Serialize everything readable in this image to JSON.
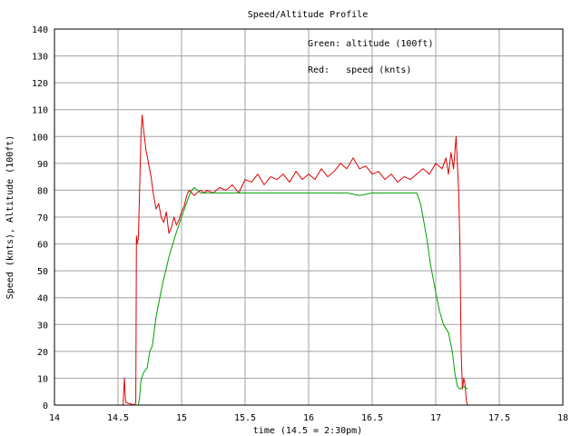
{
  "chart_data": {
    "type": "line",
    "title": "Speed/Altitude Profile",
    "xlabel": "time (14.5 = 2:30pm)",
    "ylabel": "Speed (knts), Altitude (100ft)",
    "xlim": [
      14,
      18
    ],
    "ylim": [
      0,
      140
    ],
    "grid": true,
    "x_ticks": [
      "14",
      "14.5",
      "15",
      "15.5",
      "16",
      "16.5",
      "17",
      "17.5",
      "18"
    ],
    "y_ticks": [
      "0",
      "10",
      "20",
      "30",
      "40",
      "50",
      "60",
      "70",
      "80",
      "90",
      "100",
      "110",
      "120",
      "130",
      "140"
    ],
    "legend": [
      {
        "text": "Green: altitude (100ft)",
        "color": "#00a000"
      },
      {
        "text": "Red:   speed (knts)",
        "color": "#e00000"
      }
    ],
    "legend_placement": "top-right",
    "series": [
      {
        "color": "#e00000",
        "points": [
          [
            14.54,
            0
          ],
          [
            14.55,
            10
          ],
          [
            14.56,
            1
          ],
          [
            14.63,
            0
          ],
          [
            14.64,
            1
          ],
          [
            14.645,
            63
          ],
          [
            14.65,
            60
          ],
          [
            14.66,
            62
          ],
          [
            14.67,
            80
          ],
          [
            14.68,
            100
          ],
          [
            14.69,
            108
          ],
          [
            14.7,
            103
          ],
          [
            14.72,
            95
          ],
          [
            14.74,
            90
          ],
          [
            14.76,
            85
          ],
          [
            14.78,
            78
          ],
          [
            14.8,
            73
          ],
          [
            14.82,
            75
          ],
          [
            14.84,
            70
          ],
          [
            14.86,
            68
          ],
          [
            14.88,
            72
          ],
          [
            14.9,
            64
          ],
          [
            14.92,
            66
          ],
          [
            14.94,
            70
          ],
          [
            14.96,
            67
          ],
          [
            14.98,
            69
          ],
          [
            15.0,
            72
          ],
          [
            15.02,
            74
          ],
          [
            15.04,
            78
          ],
          [
            15.06,
            80
          ],
          [
            15.08,
            79
          ],
          [
            15.1,
            78
          ],
          [
            15.12,
            79
          ],
          [
            15.15,
            80
          ],
          [
            15.18,
            79
          ],
          [
            15.2,
            80
          ],
          [
            15.25,
            79
          ],
          [
            15.3,
            81
          ],
          [
            15.35,
            80
          ],
          [
            15.4,
            82
          ],
          [
            15.45,
            79
          ],
          [
            15.5,
            84
          ],
          [
            15.55,
            83
          ],
          [
            15.6,
            86
          ],
          [
            15.65,
            82
          ],
          [
            15.7,
            85
          ],
          [
            15.75,
            84
          ],
          [
            15.8,
            86
          ],
          [
            15.85,
            83
          ],
          [
            15.9,
            87
          ],
          [
            15.95,
            84
          ],
          [
            16.0,
            86
          ],
          [
            16.05,
            84
          ],
          [
            16.1,
            88
          ],
          [
            16.15,
            85
          ],
          [
            16.2,
            87
          ],
          [
            16.25,
            90
          ],
          [
            16.3,
            88
          ],
          [
            16.35,
            92
          ],
          [
            16.4,
            88
          ],
          [
            16.45,
            89
          ],
          [
            16.5,
            86
          ],
          [
            16.55,
            87
          ],
          [
            16.6,
            84
          ],
          [
            16.65,
            86
          ],
          [
            16.7,
            83
          ],
          [
            16.75,
            85
          ],
          [
            16.8,
            84
          ],
          [
            16.85,
            86
          ],
          [
            16.9,
            88
          ],
          [
            16.95,
            86
          ],
          [
            17.0,
            90
          ],
          [
            17.05,
            88
          ],
          [
            17.08,
            92
          ],
          [
            17.1,
            86
          ],
          [
            17.12,
            94
          ],
          [
            17.14,
            88
          ],
          [
            17.16,
            100
          ],
          [
            17.17,
            90
          ],
          [
            17.18,
            80
          ],
          [
            17.19,
            60
          ],
          [
            17.2,
            20
          ],
          [
            17.21,
            6
          ],
          [
            17.22,
            10
          ],
          [
            17.23,
            8
          ],
          [
            17.24,
            2
          ],
          [
            17.25,
            0
          ]
        ]
      },
      {
        "color": "#00a000",
        "points": [
          [
            14.66,
            0
          ],
          [
            14.67,
            3
          ],
          [
            14.68,
            9
          ],
          [
            14.7,
            12
          ],
          [
            14.73,
            14
          ],
          [
            14.75,
            20
          ],
          [
            14.77,
            22
          ],
          [
            14.8,
            33
          ],
          [
            14.85,
            45
          ],
          [
            14.9,
            55
          ],
          [
            14.95,
            63
          ],
          [
            15.0,
            70
          ],
          [
            15.03,
            74
          ],
          [
            15.06,
            78
          ],
          [
            15.08,
            80
          ],
          [
            15.1,
            81
          ],
          [
            15.15,
            79
          ],
          [
            15.2,
            79
          ],
          [
            15.3,
            79
          ],
          [
            15.4,
            79
          ],
          [
            15.5,
            79
          ],
          [
            15.6,
            79
          ],
          [
            15.7,
            79
          ],
          [
            15.8,
            79
          ],
          [
            15.9,
            79
          ],
          [
            16.0,
            79
          ],
          [
            16.1,
            79
          ],
          [
            16.2,
            79
          ],
          [
            16.3,
            79
          ],
          [
            16.4,
            78
          ],
          [
            16.5,
            79
          ],
          [
            16.6,
            79
          ],
          [
            16.7,
            79
          ],
          [
            16.8,
            79
          ],
          [
            16.85,
            79
          ],
          [
            16.88,
            75
          ],
          [
            16.9,
            70
          ],
          [
            16.93,
            62
          ],
          [
            16.96,
            52
          ],
          [
            17.0,
            42
          ],
          [
            17.03,
            35
          ],
          [
            17.06,
            30
          ],
          [
            17.1,
            27
          ],
          [
            17.13,
            20
          ],
          [
            17.15,
            12
          ],
          [
            17.17,
            7
          ],
          [
            17.19,
            6
          ],
          [
            17.22,
            7
          ],
          [
            17.25,
            6
          ]
        ]
      }
    ]
  }
}
